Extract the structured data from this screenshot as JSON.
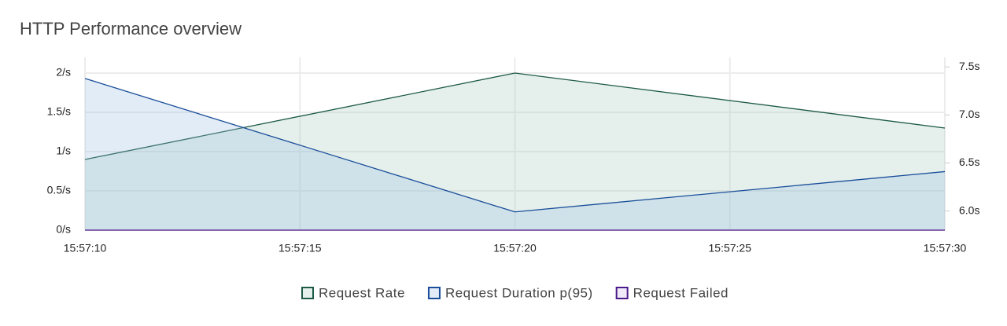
{
  "chart_data": {
    "type": "area",
    "title": "HTTP Performance overview",
    "x": [
      "15:57:10",
      "15:57:20",
      "15:57:30"
    ],
    "xlim": [
      "15:57:10",
      "15:57:30"
    ],
    "xticks": [
      "15:57:10",
      "15:57:15",
      "15:57:20",
      "15:57:25",
      "15:57:30"
    ],
    "ylim": [
      0,
      2.2
    ],
    "yticks": [
      {
        "value": 0,
        "label": "0/s"
      },
      {
        "value": 0.5,
        "label": "0.5/s"
      },
      {
        "value": 1,
        "label": "1/s"
      },
      {
        "value": 1.5,
        "label": "1.5/s"
      },
      {
        "value": 2,
        "label": "2/s"
      }
    ],
    "y2lim": [
      5.8,
      7.6
    ],
    "y2ticks": [
      {
        "value": 6.0,
        "label": "6.0s"
      },
      {
        "value": 6.5,
        "label": "6.5s"
      },
      {
        "value": 7.0,
        "label": "7.0s"
      },
      {
        "value": 7.5,
        "label": "7.5s"
      }
    ],
    "grid": true,
    "legend": "bottom",
    "series": [
      {
        "name": "Request Rate",
        "color": "#1d5a45",
        "fill": "rgba(160,200,185,0.28)",
        "values": [
          0.9,
          2.0,
          1.3
        ]
      },
      {
        "name": "Request Duration p(95)",
        "color": "#1a4e9a",
        "fill": "rgba(150,185,225,0.28)",
        "axis": "y2",
        "values": [
          7.38,
          5.99,
          6.41
        ]
      },
      {
        "name": "Request Failed",
        "color": "#4b1a8a",
        "fill": "rgba(180,150,220,0.2)",
        "values": [
          0,
          0,
          0
        ]
      }
    ]
  }
}
